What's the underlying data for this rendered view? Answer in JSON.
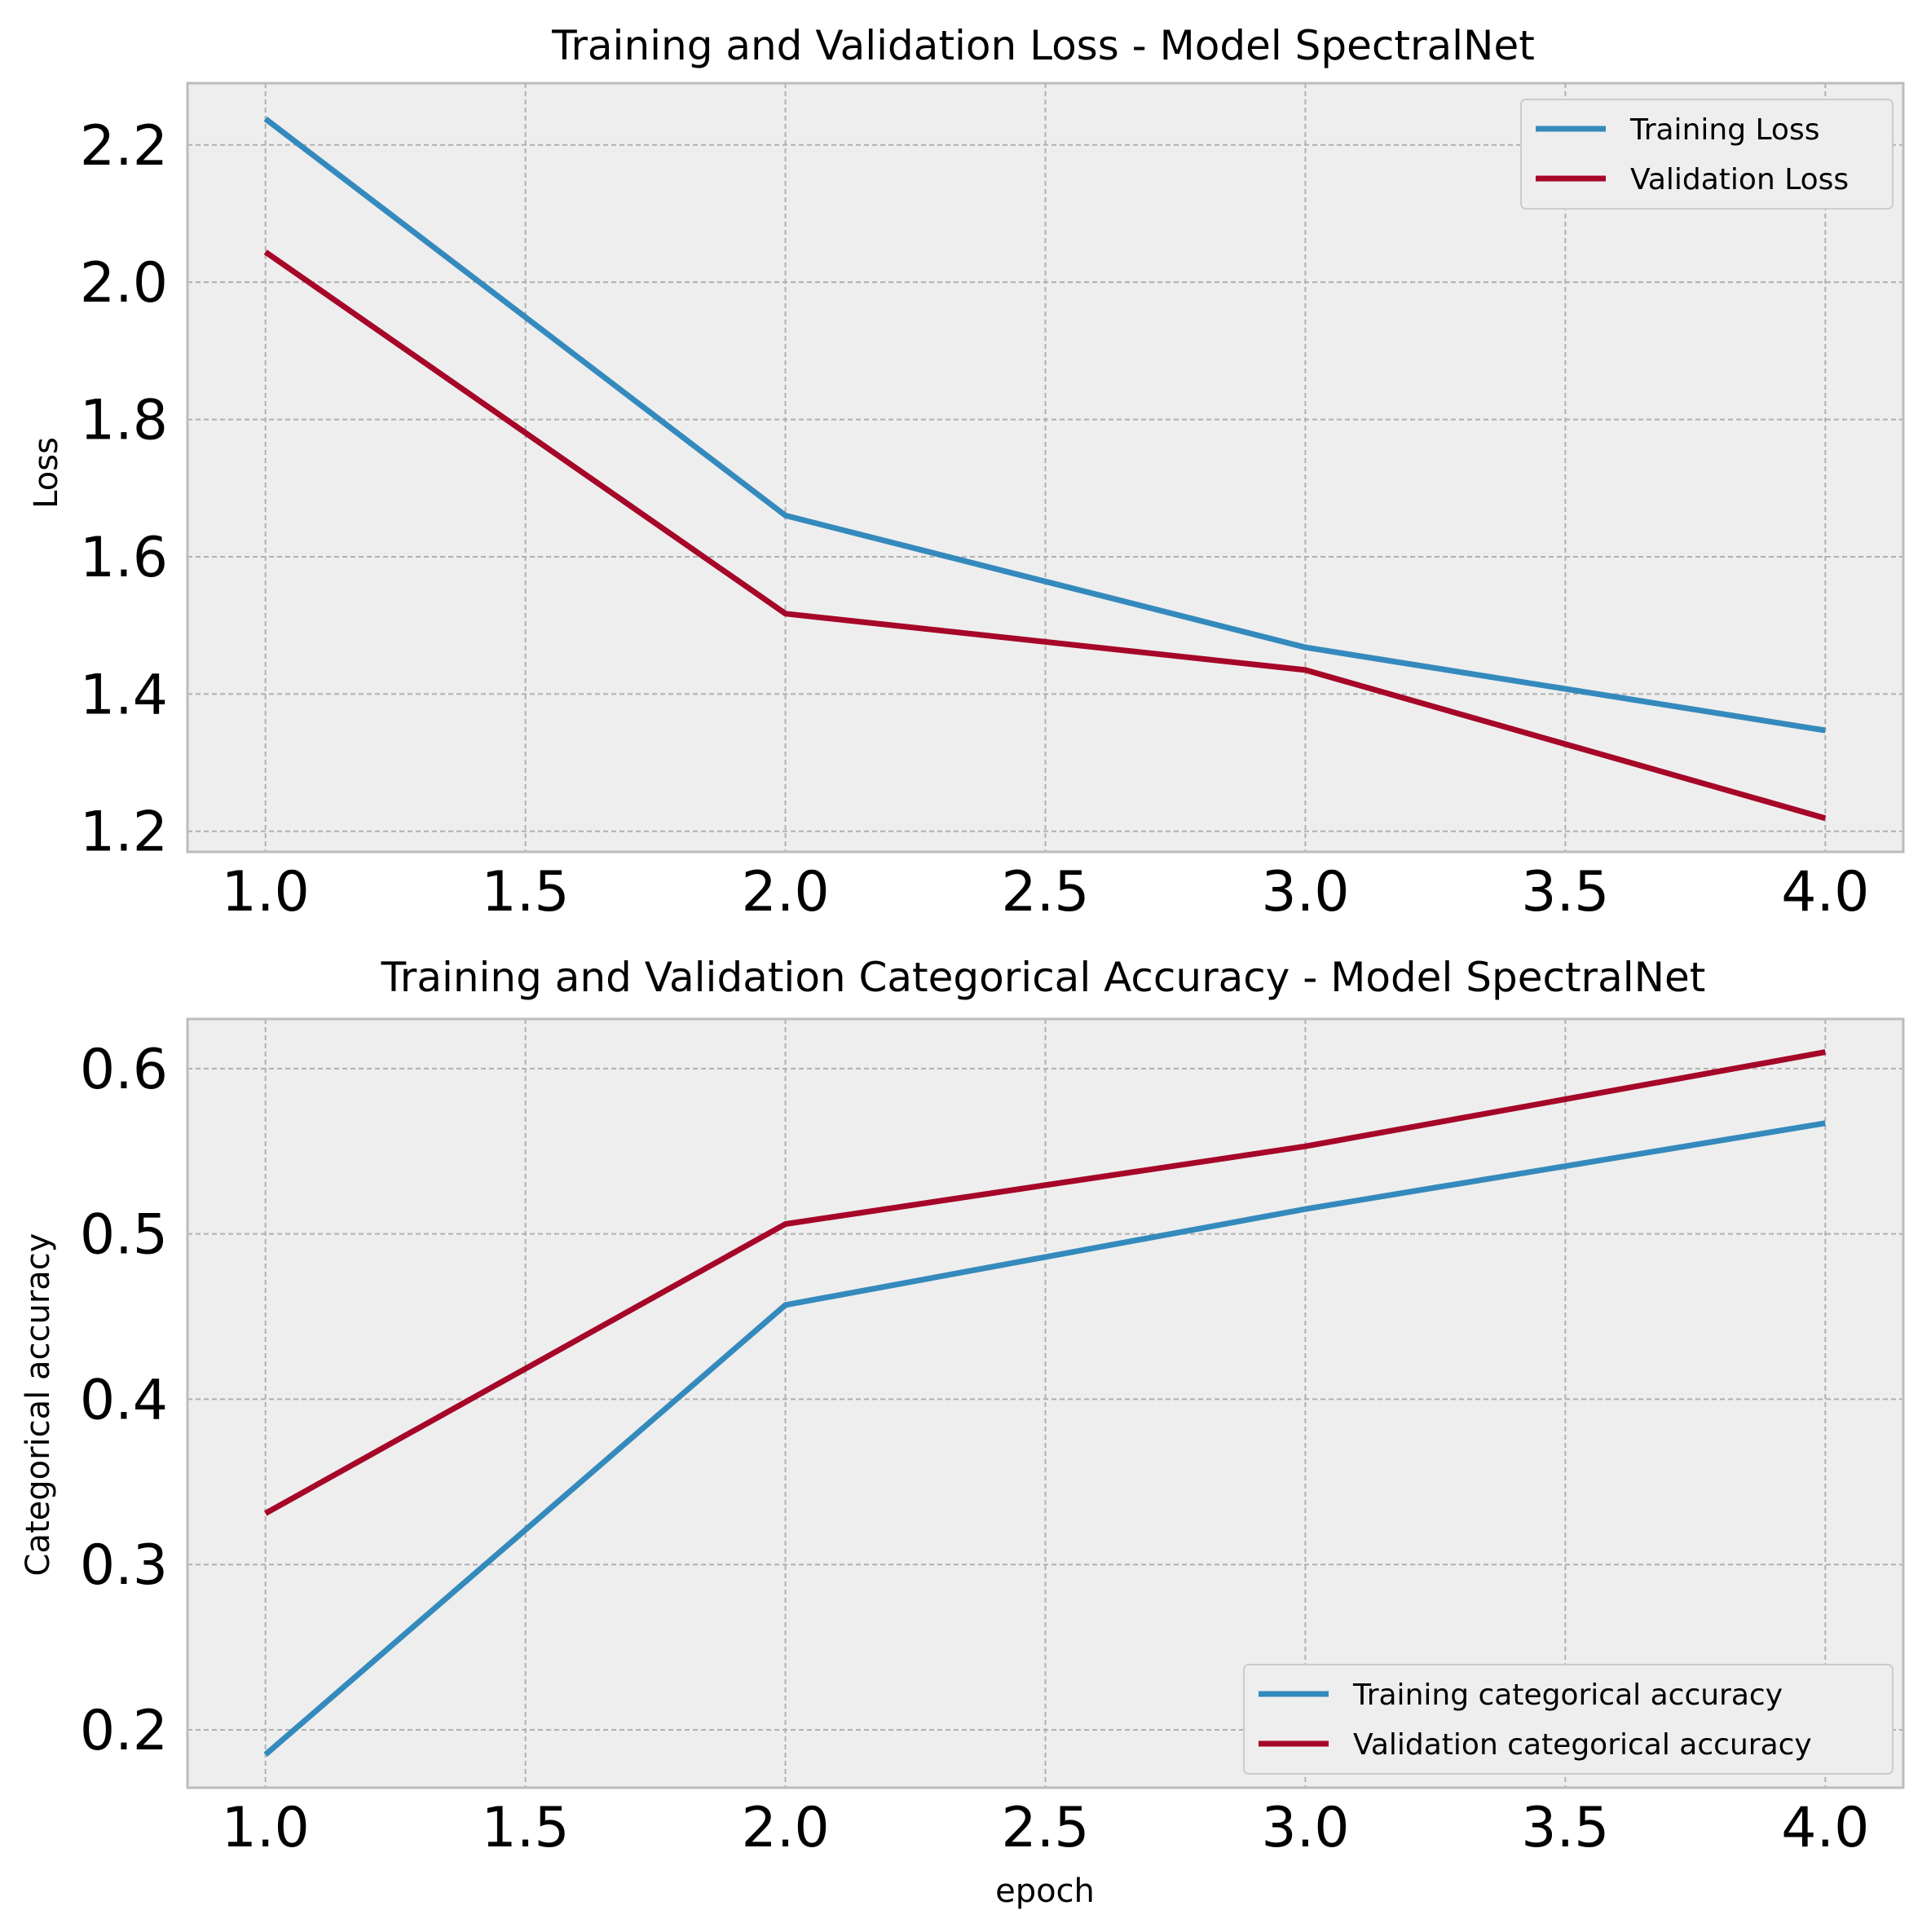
{
  "colors": {
    "training": "#348abd",
    "validation": "#a60628",
    "plot_background": "#eeeeee",
    "grid": "#b0b0b0",
    "spine": "#bcbcbc"
  },
  "chart_data": [
    {
      "type": "line",
      "title": "Training and Validation Loss - Model SpectralNet",
      "xlabel": "",
      "ylabel": "Loss",
      "x": [
        1,
        2,
        3,
        4
      ],
      "xlim": [
        0.85,
        4.15
      ],
      "ylim": [
        1.17,
        2.29
      ],
      "xticks": [
        1.0,
        1.5,
        2.0,
        2.5,
        3.0,
        3.5,
        4.0
      ],
      "xtick_labels": [
        "1.0",
        "1.5",
        "2.0",
        "2.5",
        "3.0",
        "3.5",
        "4.0"
      ],
      "yticks": [
        1.2,
        1.4,
        1.6,
        1.8,
        2.0,
        2.2
      ],
      "ytick_labels": [
        "1.2",
        "1.4",
        "1.6",
        "1.8",
        "2.0",
        "2.2"
      ],
      "grid": true,
      "legend_position": "top-right",
      "series": [
        {
          "name": "Training Loss",
          "color_key": "training",
          "values": [
            2.238,
            1.66,
            1.468,
            1.347
          ]
        },
        {
          "name": "Validation Loss",
          "color_key": "validation",
          "values": [
            2.044,
            1.517,
            1.435,
            1.219
          ]
        }
      ]
    },
    {
      "type": "line",
      "title": "Training and Validation Categorical Accuracy - Model SpectralNet",
      "xlabel": "epoch",
      "ylabel": "Categorical accuracy",
      "x": [
        1,
        2,
        3,
        4
      ],
      "xlim": [
        0.85,
        4.15
      ],
      "ylim": [
        0.165,
        0.63
      ],
      "xticks": [
        1.0,
        1.5,
        2.0,
        2.5,
        3.0,
        3.5,
        4.0
      ],
      "xtick_labels": [
        "1.0",
        "1.5",
        "2.0",
        "2.5",
        "3.0",
        "3.5",
        "4.0"
      ],
      "yticks": [
        0.2,
        0.3,
        0.4,
        0.5,
        0.6
      ],
      "ytick_labels": [
        "0.2",
        "0.3",
        "0.4",
        "0.5",
        "0.6"
      ],
      "grid": true,
      "legend_position": "bottom-right",
      "series": [
        {
          "name": "Training categorical accuracy",
          "color_key": "training",
          "values": [
            0.185,
            0.457,
            0.515,
            0.567
          ]
        },
        {
          "name": "Validation categorical accuracy",
          "color_key": "validation",
          "values": [
            0.331,
            0.506,
            0.553,
            0.61
          ]
        }
      ]
    }
  ]
}
